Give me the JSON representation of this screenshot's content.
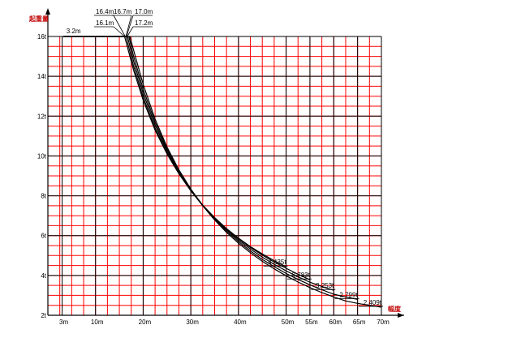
{
  "chart_data": {
    "type": "line",
    "title": "",
    "ylabel": "起重量",
    "xlabel": "幅度",
    "xlim": [
      0,
      70
    ],
    "ylim": [
      2,
      16
    ],
    "grid": true,
    "x_ticks": [
      {
        "value": 3,
        "label": "3m"
      },
      {
        "value": 10,
        "label": "10m"
      },
      {
        "value": 20,
        "label": "20m"
      },
      {
        "value": 30,
        "label": "30m"
      },
      {
        "value": 40,
        "label": "40m"
      },
      {
        "value": 50,
        "label": "50m"
      },
      {
        "value": 55,
        "label": "55m"
      },
      {
        "value": 60,
        "label": "60m"
      },
      {
        "value": 65,
        "label": "65m"
      },
      {
        "value": 70,
        "label": "70m"
      }
    ],
    "y_ticks": [
      {
        "value": 2,
        "label": "2t"
      },
      {
        "value": 4,
        "label": "4t"
      },
      {
        "value": 6,
        "label": "6t"
      },
      {
        "value": 8,
        "label": "8t"
      },
      {
        "value": 10,
        "label": "10t"
      },
      {
        "value": 12,
        "label": "12t"
      },
      {
        "value": 14,
        "label": "14t"
      },
      {
        "value": 16,
        "label": "16t"
      }
    ],
    "annotations": {
      "min_radius": {
        "text": "3.2m",
        "x": 3.2,
        "y": 16
      },
      "max_radius_labels": [
        {
          "text": "16.1m",
          "x": 16.1
        },
        {
          "text": "16.4m",
          "x": 16.4
        },
        {
          "text": "16.7m",
          "x": 16.7
        },
        {
          "text": "17.0m",
          "x": 17.0
        },
        {
          "text": "17.2m",
          "x": 17.2
        }
      ]
    },
    "series": [
      {
        "name": "",
        "jib": 50,
        "end_label": "4.435t",
        "points": [
          [
            3.2,
            16
          ],
          [
            16.1,
            16
          ],
          [
            18,
            14.3
          ],
          [
            20,
            12.8
          ],
          [
            22.5,
            11.3
          ],
          [
            25,
            10.1
          ],
          [
            27.5,
            9.1
          ],
          [
            30,
            8.25
          ],
          [
            32.5,
            7.5
          ],
          [
            35,
            6.9
          ],
          [
            37.5,
            6.35
          ],
          [
            40,
            5.87
          ],
          [
            42.5,
            5.45
          ],
          [
            45,
            5.08
          ],
          [
            47.5,
            4.74
          ],
          [
            50,
            4.435
          ]
        ]
      },
      {
        "name": "",
        "jib": 55,
        "end_label": "3.783t",
        "points": [
          [
            3.2,
            16
          ],
          [
            16.4,
            16
          ],
          [
            18,
            14.5
          ],
          [
            20,
            12.95
          ],
          [
            22.5,
            11.4
          ],
          [
            25,
            10.15
          ],
          [
            27.5,
            9.15
          ],
          [
            30,
            8.28
          ],
          [
            32.5,
            7.53
          ],
          [
            35,
            6.9
          ],
          [
            37.5,
            6.34
          ],
          [
            40,
            5.85
          ],
          [
            42.5,
            5.41
          ],
          [
            45,
            5.02
          ],
          [
            47.5,
            4.67
          ],
          [
            50,
            4.36
          ],
          [
            52.5,
            4.06
          ],
          [
            55,
            3.783
          ]
        ]
      },
      {
        "name": "",
        "jib": 60,
        "end_label": "3.253t",
        "points": [
          [
            3.2,
            16
          ],
          [
            16.7,
            16
          ],
          [
            18,
            14.75
          ],
          [
            20,
            13.15
          ],
          [
            22.5,
            11.55
          ],
          [
            25,
            10.25
          ],
          [
            27.5,
            9.2
          ],
          [
            30,
            8.3
          ],
          [
            32.5,
            7.53
          ],
          [
            35,
            6.87
          ],
          [
            37.5,
            6.29
          ],
          [
            40,
            5.78
          ],
          [
            42.5,
            5.33
          ],
          [
            45,
            4.92
          ],
          [
            47.5,
            4.56
          ],
          [
            50,
            4.23
          ],
          [
            52.5,
            3.93
          ],
          [
            55,
            3.66
          ],
          [
            57.5,
            3.45
          ],
          [
            60,
            3.253
          ]
        ]
      },
      {
        "name": "",
        "jib": 65,
        "end_label": "2.799t",
        "points": [
          [
            3.2,
            16
          ],
          [
            17.0,
            16
          ],
          [
            18,
            15.0
          ],
          [
            20,
            13.35
          ],
          [
            22.5,
            11.7
          ],
          [
            25,
            10.35
          ],
          [
            27.5,
            9.25
          ],
          [
            30,
            8.32
          ],
          [
            32.5,
            7.52
          ],
          [
            35,
            6.83
          ],
          [
            37.5,
            6.23
          ],
          [
            40,
            5.7
          ],
          [
            42.5,
            5.23
          ],
          [
            45,
            4.81
          ],
          [
            47.5,
            4.44
          ],
          [
            50,
            4.1
          ],
          [
            52.5,
            3.8
          ],
          [
            55,
            3.53
          ],
          [
            57.5,
            3.28
          ],
          [
            60,
            3.06
          ],
          [
            62.5,
            2.92
          ],
          [
            65,
            2.799
          ]
        ]
      },
      {
        "name": "",
        "jib": 70,
        "end_label": "2.409t",
        "points": [
          [
            3.2,
            16
          ],
          [
            17.2,
            16
          ],
          [
            18,
            15.3
          ],
          [
            20,
            13.6
          ],
          [
            22.5,
            11.85
          ],
          [
            25,
            10.45
          ],
          [
            27.5,
            9.3
          ],
          [
            30,
            8.34
          ],
          [
            32.5,
            7.5
          ],
          [
            35,
            6.78
          ],
          [
            37.5,
            6.16
          ],
          [
            40,
            5.62
          ],
          [
            42.5,
            5.14
          ],
          [
            45,
            4.71
          ],
          [
            47.5,
            4.33
          ],
          [
            50,
            3.98
          ],
          [
            52.5,
            3.67
          ],
          [
            55,
            3.39
          ],
          [
            57.5,
            3.14
          ],
          [
            60,
            2.92
          ],
          [
            62.5,
            2.72
          ],
          [
            65,
            2.6
          ],
          [
            67.5,
            2.5
          ],
          [
            70,
            2.409
          ]
        ]
      }
    ]
  }
}
